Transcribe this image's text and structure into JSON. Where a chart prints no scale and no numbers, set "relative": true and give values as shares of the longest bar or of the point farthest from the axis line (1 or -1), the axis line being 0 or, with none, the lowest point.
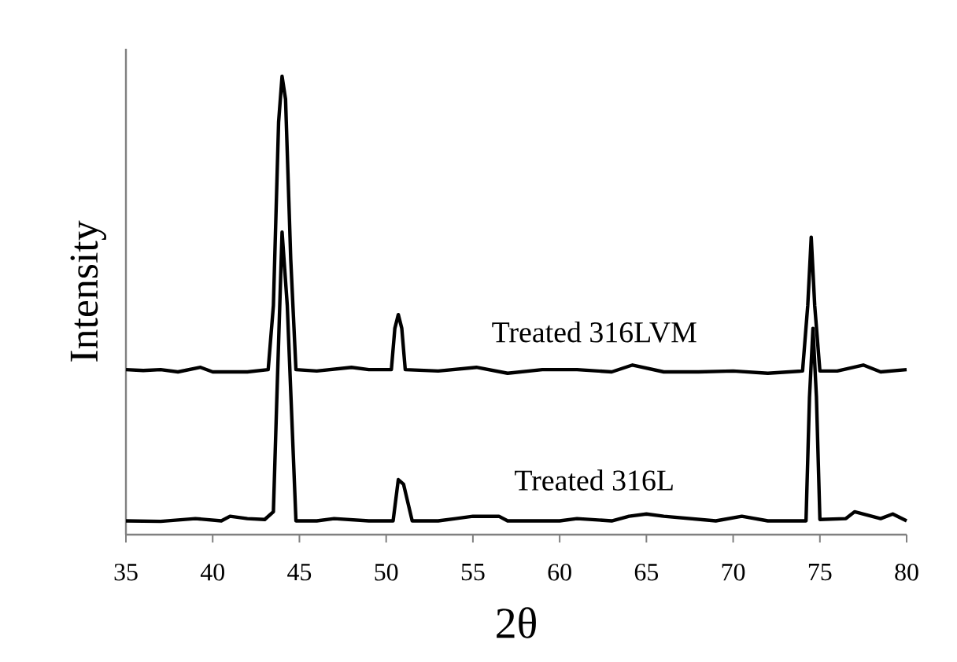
{
  "chart_data": {
    "type": "line",
    "xlabel": "2θ",
    "ylabel": "Intensity",
    "relative": true,
    "xlim": [
      35,
      80
    ],
    "xticks": [
      35,
      40,
      45,
      50,
      55,
      60,
      65,
      70,
      75,
      80
    ],
    "legend": false,
    "grid": false,
    "marker": "none",
    "line_style": "solid",
    "series": [
      {
        "name": "Treated 316LVM",
        "color": "#000000",
        "x": [
          35,
          36,
          37,
          38,
          39.3,
          40,
          42,
          43.2,
          43.5,
          43.8,
          44,
          44.2,
          44.5,
          44.8,
          46,
          48,
          49,
          50.3,
          50.5,
          50.7,
          50.9,
          51.1,
          53,
          55.2,
          57,
          59,
          61,
          63,
          64.2,
          66,
          68,
          70,
          72,
          74,
          74.3,
          74.5,
          74.7,
          75,
          76,
          77.5,
          78.5,
          80
        ],
        "values": [
          0.36,
          0.358,
          0.36,
          0.355,
          0.365,
          0.355,
          0.355,
          0.36,
          0.5,
          0.9,
          1.0,
          0.95,
          0.6,
          0.36,
          0.357,
          0.365,
          0.36,
          0.36,
          0.45,
          0.48,
          0.45,
          0.36,
          0.357,
          0.365,
          0.352,
          0.36,
          0.36,
          0.355,
          0.37,
          0.355,
          0.355,
          0.357,
          0.352,
          0.357,
          0.5,
          0.649,
          0.5,
          0.357,
          0.357,
          0.37,
          0.355,
          0.36
        ]
      },
      {
        "name": "Treated 316L",
        "color": "#000000",
        "x": [
          35,
          37,
          39,
          40.5,
          41,
          42,
          43,
          43.5,
          43.7,
          44,
          44.3,
          44.8,
          46,
          47,
          49,
          50.4,
          50.7,
          51,
          51.5,
          53,
          54,
          55,
          56.5,
          57,
          60,
          61,
          63,
          64,
          65,
          66,
          67.5,
          69,
          70.5,
          72,
          74.2,
          74.4,
          74.6,
          74.8,
          75,
          76.5,
          77,
          78.5,
          79.2,
          80
        ],
        "values": [
          0.03,
          0.029,
          0.035,
          0.03,
          0.04,
          0.035,
          0.033,
          0.05,
          0.3,
          0.66,
          0.5,
          0.03,
          0.03,
          0.035,
          0.03,
          0.03,
          0.12,
          0.11,
          0.03,
          0.03,
          0.035,
          0.04,
          0.04,
          0.03,
          0.03,
          0.035,
          0.03,
          0.04,
          0.045,
          0.04,
          0.035,
          0.03,
          0.04,
          0.03,
          0.03,
          0.3,
          0.45,
          0.3,
          0.033,
          0.035,
          0.05,
          0.035,
          0.045,
          0.03
        ]
      }
    ]
  }
}
